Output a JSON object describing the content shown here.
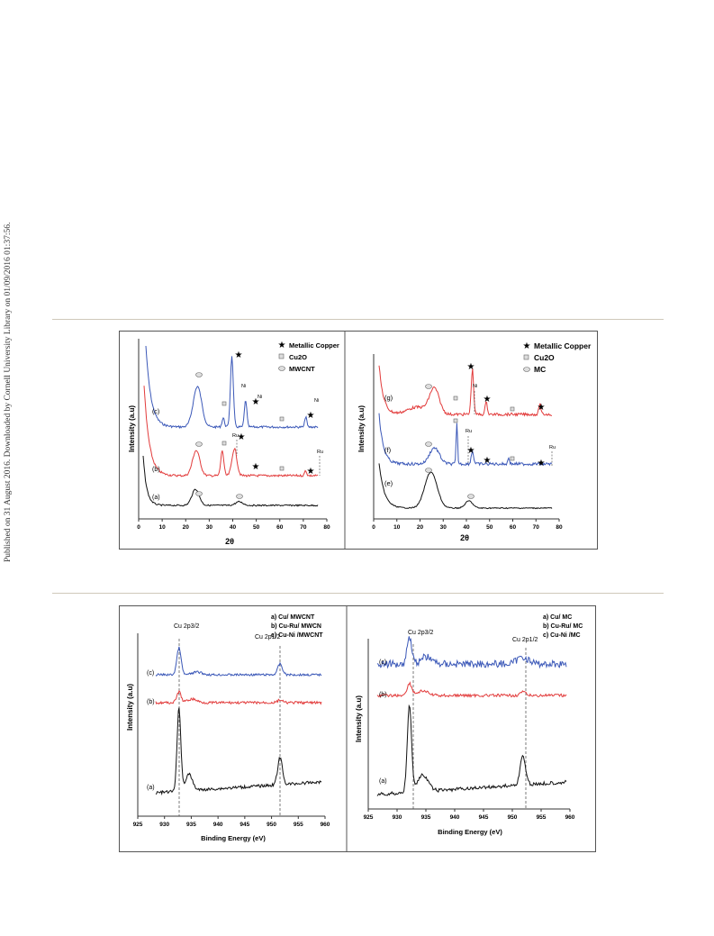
{
  "side_note": "Published on 31 August 2016. Downloaded by Cornell University Library on 01/09/2016 01:37:56.",
  "colors": {
    "rule": "#cfc8ba",
    "black_trace": "#111111",
    "red_trace": "#e23b3b",
    "blue_trace": "#3b58b8"
  },
  "xrd": {
    "left": {
      "ylabel": "Intensity (a.u)",
      "xlabel": "2θ",
      "ticks": [
        "0",
        "10",
        "20",
        "30",
        "40",
        "50",
        "60",
        "70",
        "80"
      ],
      "legend": {
        "star": "Metallic Copper",
        "square": "Cu2O",
        "circle": "MWCNT"
      },
      "curves": [
        {
          "label": "(c)",
          "color": "blue",
          "marks": {
            "ni1": "Ni",
            "ni2": "Ni",
            "ni3": "Ni"
          }
        },
        {
          "label": "(b)",
          "color": "red",
          "marks": {
            "ru1": "Ru",
            "ru2": "Ru"
          }
        },
        {
          "label": "(a)",
          "color": "black"
        }
      ]
    },
    "right": {
      "ylabel": "Intensity (a.u)",
      "xlabel": "2θ",
      "ticks": [
        "0",
        "10",
        "20",
        "30",
        "40",
        "50",
        "60",
        "70",
        "80"
      ],
      "legend": {
        "star": "Metallic Copper",
        "square": "Cu2O",
        "circle": "MC"
      },
      "curves": [
        {
          "label": "(g)",
          "color": "red",
          "marks": {
            "ni1": "Ni"
          }
        },
        {
          "label": "(f)",
          "color": "blue",
          "marks": {
            "ru1": "Ru",
            "ru2": "Ru"
          }
        },
        {
          "label": "(e)",
          "color": "black"
        }
      ]
    }
  },
  "xps": {
    "left": {
      "ylabel": "Intensity (a.u)",
      "xlabel": "Binding Energy (eV)",
      "ticks": [
        "925",
        "930",
        "935",
        "940",
        "945",
        "950",
        "955",
        "960"
      ],
      "peak1": "Cu 2p3/2",
      "peak2": "Cu 2p1/2",
      "legend": [
        "a) Cu/ MWCNT",
        "b) Cu-Ru/ MWCN",
        "c) Cu-Ni /MWCNT"
      ],
      "curves": [
        "(c)",
        "(b)",
        "(a)"
      ]
    },
    "right": {
      "ylabel": "Intensity (a.u)",
      "xlabel": "Binding Energy (eV)",
      "ticks": [
        "925",
        "930",
        "935",
        "940",
        "945",
        "950",
        "955",
        "960"
      ],
      "peak1": "Cu 2p3/2",
      "peak2": "Cu 2p1/2",
      "legend": [
        "a) Cu/ MC",
        "b) Cu-Ru/ MC",
        "c) Cu-Ni /MC"
      ],
      "curves": [
        "(c)",
        "(b)",
        "(a)"
      ]
    }
  }
}
